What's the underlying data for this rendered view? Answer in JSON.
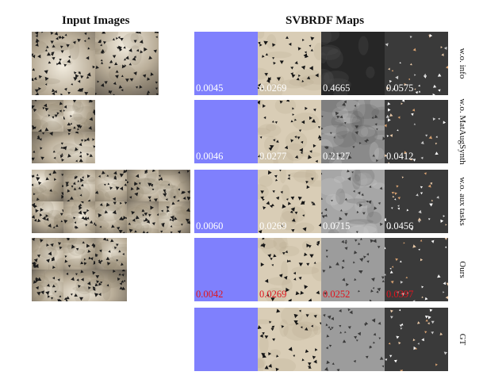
{
  "headings": {
    "input": "Input Images",
    "maps": "SVBRDF Maps"
  },
  "map_types": [
    "normal",
    "diffuse",
    "roughness",
    "specular"
  ],
  "rows": [
    {
      "label": "w.o. info",
      "input_count": 2,
      "values": [
        "0.0045",
        "0.0269",
        "0.4665",
        "0.0575"
      ],
      "best": false
    },
    {
      "label": "w.o. MatAugSynth",
      "input_count": 3,
      "values": [
        "0.0046",
        "0.0277",
        "0.2127",
        "0.0412"
      ],
      "best": false
    },
    {
      "label": "w.o. aux tasks",
      "input_count": 10,
      "values": [
        "0.0060",
        "0.0269",
        "0.0715",
        "0.0456"
      ],
      "best": false
    },
    {
      "label": "Ours",
      "input_count": 5,
      "values": [
        "0.0042",
        "0.0269",
        "0.0252",
        "0.0397"
      ],
      "best": true
    },
    {
      "label": "GT",
      "input_count": 0,
      "values": [],
      "best": false
    }
  ],
  "colors": {
    "normal": "#7f80fd",
    "diffuse": "#d9cdb6",
    "roughness_row1": "#262626",
    "roughness_row2": "#8a8a8a",
    "roughness_row3": "#a6a6a6",
    "roughness_row4": "#9c9c9c",
    "specular": "#3a3a3a",
    "best_value": "#e0141e"
  }
}
